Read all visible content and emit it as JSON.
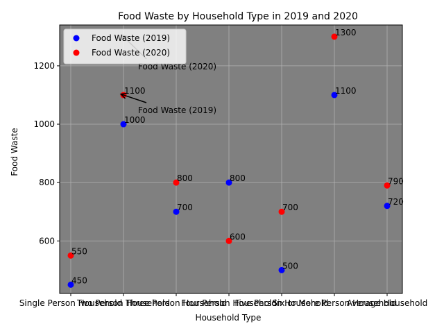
{
  "chart_data": {
    "type": "scatter",
    "title": "Food Waste by Household Type in 2019 and 2020",
    "xlabel": "Household Type",
    "ylabel": "Food Waste",
    "categories": [
      "Single Person Household",
      "Two Person Household",
      "Three Person Household",
      "Four Person Household",
      "Five Person Household",
      "Six or More Person Household",
      "Average Household"
    ],
    "series": [
      {
        "name": "Food Waste (2019)",
        "color": "#0000ff",
        "values": [
          450,
          1000,
          700,
          800,
          500,
          1100,
          720
        ]
      },
      {
        "name": "Food Waste (2020)",
        "color": "#ff0000",
        "values": [
          550,
          1100,
          800,
          600,
          700,
          1300,
          790
        ]
      }
    ],
    "ylim": [
      420,
      1340
    ],
    "yticks": [
      600,
      800,
      1000,
      1200
    ],
    "grid": true,
    "legend": "upper-left",
    "plot_background": "#808080",
    "annotations": [
      {
        "text": "Food Waste (2019)",
        "category_index": 1,
        "value": 1100,
        "text_value": 1050
      },
      {
        "text": "Food Waste (2020)",
        "category_index": 1,
        "value": 1300,
        "text_value": 1200
      }
    ]
  }
}
